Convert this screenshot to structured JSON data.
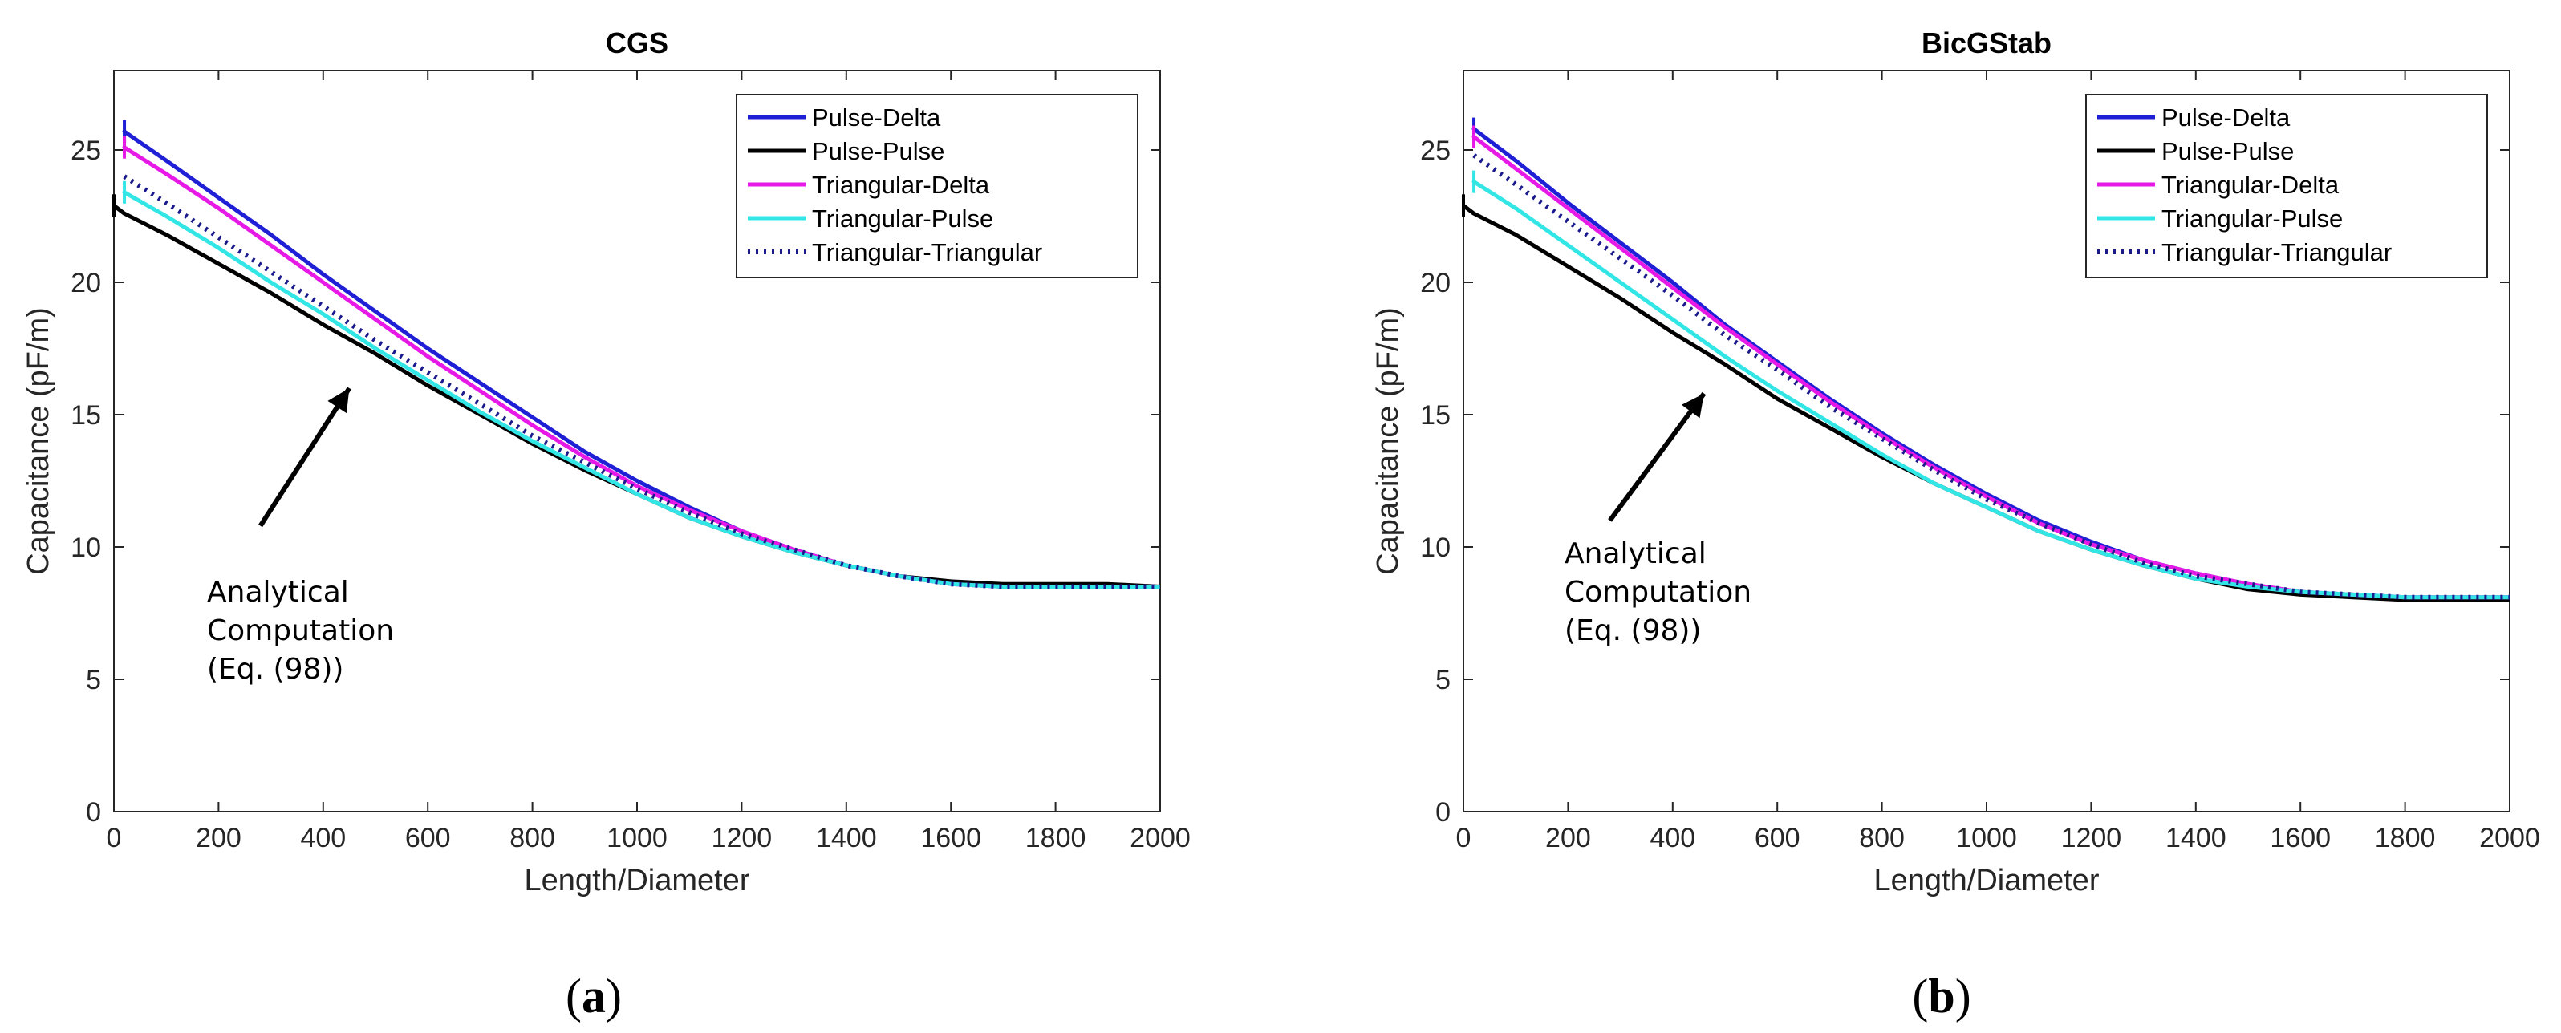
{
  "chart_data": [
    {
      "type": "line",
      "title": "CGS",
      "xlabel": "Length/Diameter",
      "ylabel": "Capacitance (pF/m)",
      "xlim": [
        0,
        2000
      ],
      "ylim": [
        0,
        28
      ],
      "xticks": [
        0,
        200,
        400,
        600,
        800,
        1000,
        1200,
        1400,
        1600,
        1800,
        2000
      ],
      "yticks": [
        0,
        5,
        10,
        15,
        20,
        25
      ],
      "x": [
        0,
        20,
        100,
        200,
        300,
        400,
        500,
        600,
        700,
        800,
        900,
        1000,
        1100,
        1200,
        1300,
        1400,
        1500,
        1600,
        1700,
        1800,
        1900,
        2000
      ],
      "series": [
        {
          "name": "Pulse-Delta",
          "color": "#1f1fd6",
          "dash": "solid",
          "values": [
            null,
            25.7,
            24.6,
            23.2,
            21.8,
            20.3,
            18.9,
            17.5,
            16.2,
            14.9,
            13.6,
            12.5,
            11.5,
            10.6,
            9.9,
            9.3,
            8.9,
            8.6,
            8.5,
            8.5,
            8.5,
            8.5
          ]
        },
        {
          "name": "Pulse-Pulse",
          "color": "#000000",
          "dash": "solid",
          "values": [
            22.9,
            22.6,
            21.8,
            20.7,
            19.6,
            18.4,
            17.3,
            16.1,
            15.0,
            13.9,
            12.9,
            12.0,
            11.1,
            10.4,
            9.8,
            9.3,
            8.9,
            8.7,
            8.6,
            8.6,
            8.6,
            8.5
          ]
        },
        {
          "name": "Triangular-Delta",
          "color": "#e619e6",
          "dash": "solid",
          "values": [
            null,
            25.1,
            24.1,
            22.8,
            21.4,
            20.0,
            18.6,
            17.2,
            15.9,
            14.6,
            13.4,
            12.3,
            11.4,
            10.6,
            9.9,
            9.3,
            8.9,
            8.6,
            8.5,
            8.5,
            8.5,
            8.5
          ]
        },
        {
          "name": "Triangular-Pulse",
          "color": "#33e6e6",
          "dash": "solid",
          "values": [
            null,
            23.4,
            22.5,
            21.3,
            20.0,
            18.8,
            17.5,
            16.3,
            15.1,
            14.0,
            13.0,
            12.0,
            11.1,
            10.4,
            9.8,
            9.3,
            8.9,
            8.6,
            8.5,
            8.5,
            8.5,
            8.5
          ]
        },
        {
          "name": "Triangular-Triangular",
          "color": "#1a1a8c",
          "dash": "dotted",
          "values": [
            null,
            24.0,
            23.0,
            21.7,
            20.4,
            19.1,
            17.8,
            16.6,
            15.4,
            14.2,
            13.2,
            12.2,
            11.3,
            10.5,
            9.9,
            9.3,
            8.9,
            8.6,
            8.5,
            8.5,
            8.5,
            8.5
          ]
        }
      ],
      "legend": {
        "placement": "top-right"
      },
      "annotation": {
        "lines": [
          "Analytical",
          "Computation",
          "(Eq. (98))"
        ],
        "arrow_from": [
          280,
          10.8
        ],
        "arrow_to": [
          450,
          16.0
        ]
      },
      "caption": "(a)"
    },
    {
      "type": "line",
      "title": "BicGStab",
      "xlabel": "Length/Diameter",
      "ylabel": "Capacitance (pF/m)",
      "xlim": [
        0,
        2000
      ],
      "ylim": [
        0,
        28
      ],
      "xticks": [
        0,
        200,
        400,
        600,
        800,
        1000,
        1200,
        1400,
        1600,
        1800,
        2000
      ],
      "yticks": [
        0,
        5,
        10,
        15,
        20,
        25
      ],
      "x": [
        0,
        20,
        100,
        200,
        300,
        400,
        500,
        600,
        700,
        800,
        900,
        1000,
        1100,
        1200,
        1300,
        1400,
        1500,
        1600,
        1700,
        1800,
        1900,
        2000
      ],
      "series": [
        {
          "name": "Pulse-Delta",
          "color": "#1f1fd6",
          "dash": "solid",
          "values": [
            null,
            25.8,
            24.6,
            23.0,
            21.5,
            20.0,
            18.4,
            17.0,
            15.6,
            14.3,
            13.1,
            12.0,
            11.0,
            10.2,
            9.5,
            9.0,
            8.6,
            8.3,
            8.2,
            8.1,
            8.1,
            8.1
          ]
        },
        {
          "name": "Pulse-Pulse",
          "color": "#000000",
          "dash": "solid",
          "values": [
            22.9,
            22.6,
            21.8,
            20.6,
            19.4,
            18.1,
            16.9,
            15.6,
            14.5,
            13.4,
            12.4,
            11.5,
            10.6,
            9.9,
            9.3,
            8.8,
            8.4,
            8.2,
            8.1,
            8.0,
            8.0,
            8.0
          ]
        },
        {
          "name": "Triangular-Delta",
          "color": "#e619e6",
          "dash": "solid",
          "values": [
            null,
            25.5,
            24.3,
            22.8,
            21.3,
            19.8,
            18.3,
            16.9,
            15.5,
            14.2,
            13.0,
            11.9,
            10.9,
            10.1,
            9.5,
            9.0,
            8.6,
            8.3,
            8.2,
            8.1,
            8.1,
            8.1
          ]
        },
        {
          "name": "Triangular-Pulse",
          "color": "#33e6e6",
          "dash": "solid",
          "values": [
            null,
            23.8,
            22.8,
            21.4,
            20.0,
            18.6,
            17.2,
            15.9,
            14.7,
            13.5,
            12.4,
            11.5,
            10.6,
            9.9,
            9.3,
            8.8,
            8.5,
            8.3,
            8.2,
            8.1,
            8.1,
            8.1
          ]
        },
        {
          "name": "Triangular-Triangular",
          "color": "#1a1a8c",
          "dash": "dotted",
          "values": [
            null,
            24.8,
            23.7,
            22.3,
            20.9,
            19.5,
            18.0,
            16.7,
            15.3,
            14.1,
            12.9,
            11.8,
            10.9,
            10.1,
            9.4,
            8.9,
            8.6,
            8.3,
            8.2,
            8.1,
            8.1,
            8.1
          ]
        }
      ],
      "legend": {
        "placement": "top-right"
      },
      "annotation": {
        "lines": [
          "Analytical",
          "Computation",
          "(Eq. (98))"
        ],
        "arrow_from": [
          280,
          11.0
        ],
        "arrow_to": [
          460,
          15.8
        ]
      },
      "caption": "(b)"
    }
  ]
}
